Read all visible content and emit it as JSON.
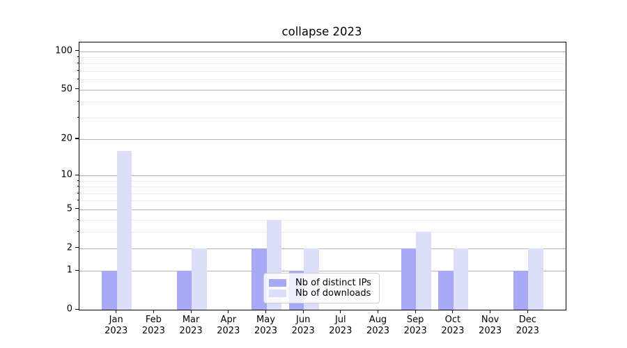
{
  "chart_data": {
    "type": "bar",
    "title": "collapse 2023",
    "categories": [
      "Jan 2023",
      "Feb 2023",
      "Mar 2023",
      "Apr 2023",
      "May 2023",
      "Jun 2023",
      "Jul 2023",
      "Aug 2023",
      "Sep 2023",
      "Oct 2023",
      "Nov 2023",
      "Dec 2023"
    ],
    "series": [
      {
        "name": "Nb of distinct IPs",
        "color": "#a7a9f7",
        "values": [
          1,
          0,
          1,
          0,
          2,
          1,
          0,
          0,
          2,
          1,
          0,
          1
        ]
      },
      {
        "name": "Nb of downloads",
        "color": "#dcddf9",
        "values": [
          16,
          0,
          2,
          0,
          4,
          2,
          0,
          0,
          3,
          2,
          0,
          2
        ]
      }
    ],
    "xlabel": "",
    "ylabel": "",
    "yscale": "log1p",
    "ylim": [
      0,
      117
    ],
    "y_major_ticks": [
      0,
      1,
      2,
      5,
      10,
      20,
      50,
      100
    ],
    "y_minor_ticks": [
      3,
      4,
      6,
      7,
      8,
      9,
      30,
      40,
      60,
      70,
      80,
      90
    ],
    "grid": "both",
    "legend": {
      "position": "lower center"
    }
  },
  "colors": {
    "bar_distinct_ips": "#a7a9f7",
    "bar_downloads": "#dcddf9",
    "major_grid": "#b3b3b3",
    "minor_grid": "#ebebeb",
    "spine": "#000000",
    "text": "#000000",
    "legend_border": "#cccccc",
    "background": "#ffffff"
  }
}
